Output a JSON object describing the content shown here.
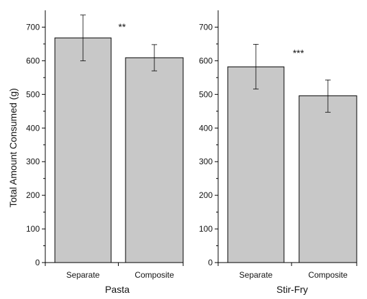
{
  "chart_data": [
    {
      "type": "bar",
      "panel": "left",
      "categories": [
        "Separate",
        "Composite"
      ],
      "values": [
        668,
        609
      ],
      "errors": [
        [
          600,
          736
        ],
        [
          570,
          648
        ]
      ],
      "xlabel": "Pasta",
      "ylabel": "Total Amount Consumed (g)",
      "ylim": [
        0,
        750
      ],
      "yticks": [
        0,
        100,
        200,
        300,
        400,
        500,
        600,
        700
      ],
      "significance": "**",
      "bar_color": "#c8c8c8"
    },
    {
      "type": "bar",
      "panel": "right",
      "categories": [
        "Separate",
        "Composite"
      ],
      "values": [
        582,
        496
      ],
      "errors": [
        [
          516,
          649
        ],
        [
          447,
          543
        ]
      ],
      "xlabel": "Stir-Fry",
      "ylabel": "",
      "ylim": [
        0,
        750
      ],
      "yticks": [
        0,
        100,
        200,
        300,
        400,
        500,
        600,
        700
      ],
      "significance": "***",
      "bar_color": "#c8c8c8"
    }
  ]
}
